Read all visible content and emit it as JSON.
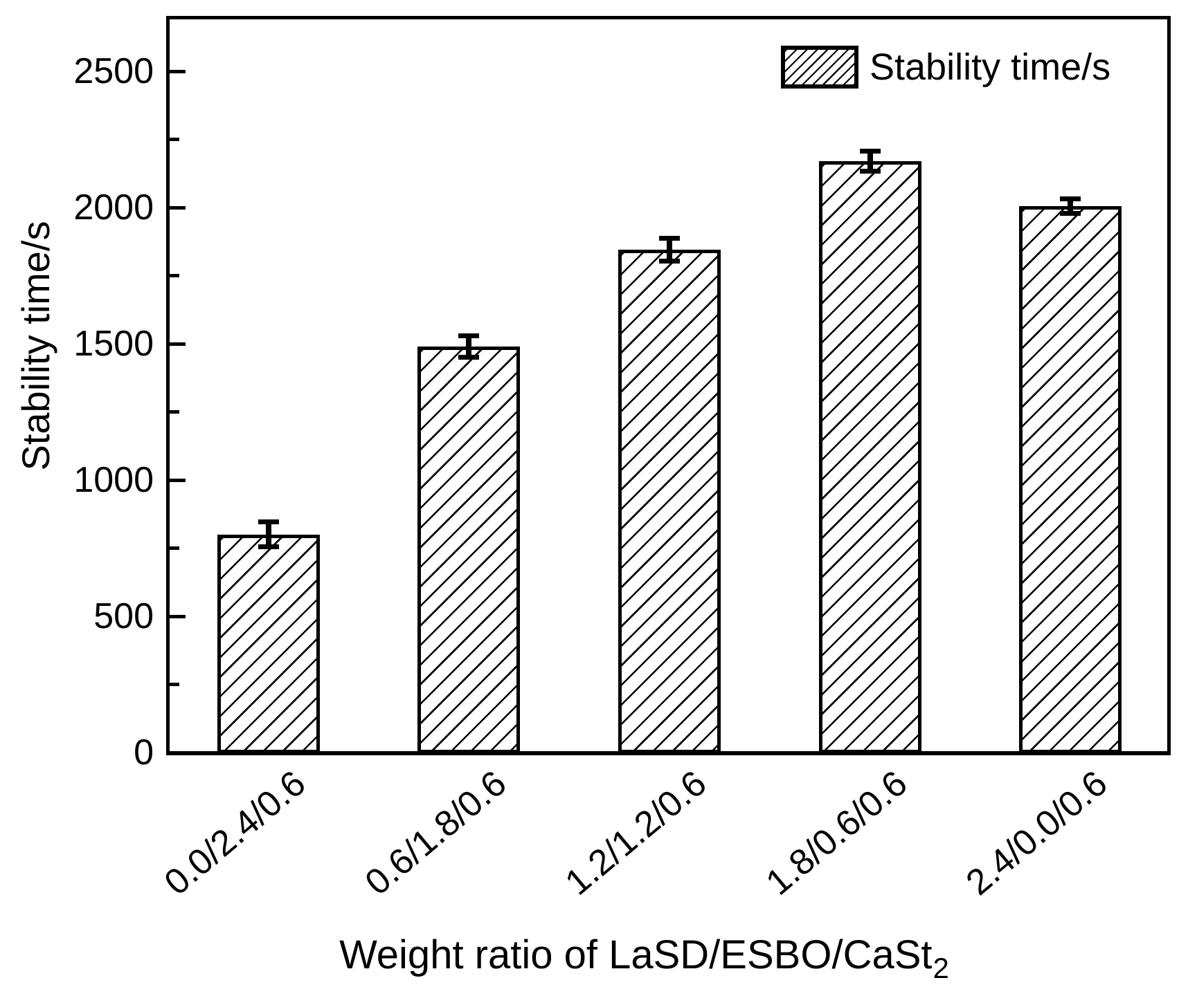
{
  "figure": {
    "background": "#ffffff",
    "foreground": "#000000"
  },
  "chart_data": {
    "type": "bar",
    "title": "",
    "xlabel": "Weight ratio of LaSD/ESBO/CaSt2",
    "xlabel_text": "Weight ratio of LaSD/ESBO/CaSt",
    "xlabel_sub": "2",
    "ylabel": "Stability time/s",
    "legend_label": "Stability time/s",
    "legend_position": "top-right",
    "categories": [
      "0.0/2.4/0.6",
      "0.6/1.8/0.6",
      "1.2/1.2/0.6",
      "1.8/0.6/0.6",
      "2.4/0.0/0.6"
    ],
    "values": [
      800,
      1490,
      1845,
      2170,
      2005
    ],
    "errors": [
      47,
      41,
      43,
      37,
      29
    ],
    "ylim": [
      0,
      2700
    ],
    "yticks_major": [
      0,
      500,
      1000,
      1500,
      2000,
      2500
    ],
    "yticks_minor": [
      250,
      750,
      1250,
      1750,
      2250
    ],
    "grid": false,
    "bar_fill": "#ffffff",
    "bar_hatch": "diagonal-forward-slash",
    "edge_color": "#000000"
  }
}
